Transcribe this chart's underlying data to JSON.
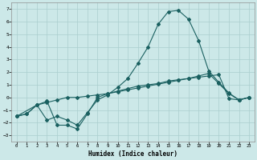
{
  "xlabel": "Humidex (Indice chaleur)",
  "background_color": "#cce8e8",
  "grid_color": "#aacece",
  "line_color": "#1a6060",
  "xlim": [
    -0.5,
    23.5
  ],
  "ylim": [
    -3.5,
    7.5
  ],
  "xticks": [
    0,
    1,
    2,
    3,
    4,
    5,
    6,
    7,
    8,
    9,
    10,
    11,
    12,
    13,
    14,
    15,
    16,
    17,
    18,
    19,
    20,
    21,
    22,
    23
  ],
  "yticks": [
    -3,
    -2,
    -1,
    0,
    1,
    2,
    3,
    4,
    5,
    6,
    7
  ],
  "series1_x": [
    0,
    1,
    2,
    3,
    4,
    5,
    6,
    7,
    8,
    9,
    10,
    11,
    12,
    13,
    14,
    15,
    16,
    17,
    18,
    19,
    20,
    21,
    22,
    23
  ],
  "series1_y": [
    -1.5,
    -1.3,
    -0.6,
    -0.4,
    -0.2,
    0.0,
    0.0,
    0.1,
    0.2,
    0.3,
    0.45,
    0.6,
    0.75,
    0.9,
    1.05,
    1.2,
    1.35,
    1.5,
    1.6,
    1.7,
    1.8,
    -0.1,
    -0.2,
    0.0
  ],
  "series2_x": [
    0,
    2,
    3,
    4,
    5,
    6,
    7,
    8,
    9,
    10,
    11,
    12,
    13,
    14,
    15,
    16,
    17,
    18,
    19,
    20,
    21,
    22,
    23
  ],
  "series2_y": [
    -1.5,
    -0.6,
    -1.8,
    -1.5,
    -1.8,
    -2.2,
    -1.2,
    -0.2,
    0.2,
    0.8,
    1.5,
    2.7,
    4.0,
    5.8,
    6.8,
    6.9,
    6.2,
    4.5,
    2.1,
    1.2,
    0.35,
    -0.2,
    0.0
  ],
  "series3_x": [
    0,
    1,
    2,
    3,
    4,
    5,
    6,
    7,
    8,
    9,
    10,
    11,
    12,
    13,
    14,
    15,
    16,
    17,
    18,
    19,
    20,
    21,
    22,
    23
  ],
  "series3_y": [
    -1.5,
    -1.3,
    -0.6,
    -0.3,
    -2.2,
    -2.2,
    -2.5,
    -1.3,
    0.0,
    0.3,
    0.5,
    0.7,
    0.9,
    1.0,
    1.1,
    1.3,
    1.4,
    1.5,
    1.7,
    1.9,
    1.1,
    0.3,
    -0.2,
    0.0
  ]
}
